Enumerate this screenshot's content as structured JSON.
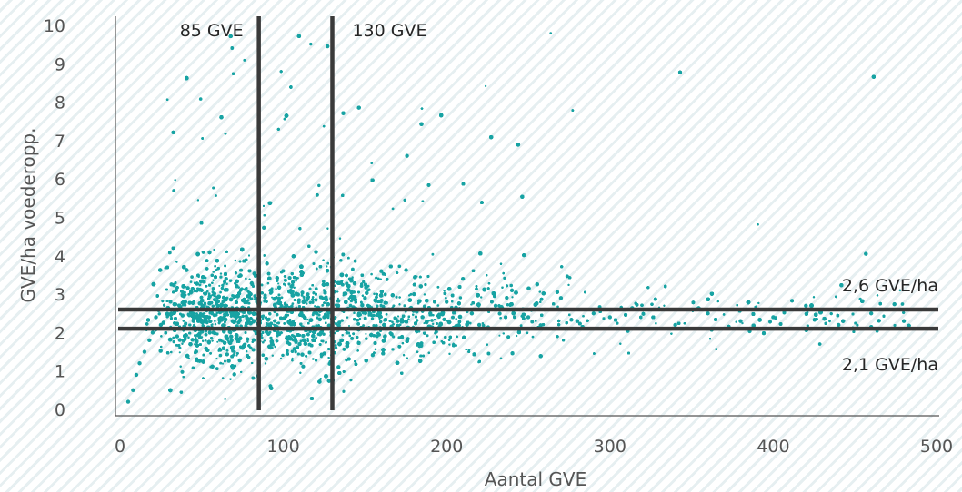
{
  "chart_data": {
    "type": "scatter",
    "title": "",
    "xlabel": "Aantal GVE",
    "ylabel": "GVE/ha voederopp.",
    "xlim": [
      0,
      500
    ],
    "ylim": [
      0,
      10
    ],
    "x_ticks": [
      "0",
      "100",
      "200",
      "300",
      "400",
      "500"
    ],
    "y_ticks": [
      "0",
      "1",
      "2",
      "3",
      "4",
      "5",
      "6",
      "7",
      "8",
      "9",
      "10"
    ],
    "grid": false,
    "point_color": "#17a3a3",
    "line_color": "#3a3a3a",
    "series": [
      {
        "points_note": "dense cloud of farms; main mass between 20–250 GVE and 1–4 GVE/ha, thinning out towards 500 GVE around 2–3 GVE/ha",
        "points": [
          [
            5,
            0.2
          ],
          [
            8,
            0.5
          ],
          [
            10,
            0.9
          ],
          [
            12,
            1.2
          ],
          [
            15,
            1.5
          ],
          [
            18,
            1.8
          ],
          [
            20,
            2.0
          ],
          [
            22,
            2.4
          ],
          [
            25,
            2.2
          ],
          [
            30,
            2.6
          ],
          [
            35,
            1.9
          ],
          [
            40,
            2.8
          ],
          [
            45,
            2.3
          ],
          [
            50,
            3.1
          ],
          [
            55,
            2.0
          ],
          [
            60,
            2.7
          ],
          [
            65,
            3.4
          ],
          [
            70,
            2.5
          ],
          [
            75,
            1.6
          ],
          [
            80,
            3.0
          ],
          [
            85,
            2.2
          ],
          [
            90,
            3.8
          ],
          [
            95,
            2.6
          ],
          [
            100,
            2.1
          ],
          [
            105,
            3.2
          ],
          [
            110,
            1.7
          ],
          [
            115,
            2.9
          ],
          [
            120,
            4.1
          ],
          [
            125,
            2.4
          ],
          [
            130,
            3.3
          ],
          [
            140,
            2.6
          ],
          [
            150,
            2.9
          ],
          [
            160,
            3.6
          ],
          [
            170,
            2.3
          ],
          [
            180,
            3.0
          ],
          [
            190,
            2.5
          ],
          [
            200,
            2.8
          ],
          [
            210,
            3.4
          ],
          [
            220,
            2.2
          ],
          [
            230,
            2.7
          ],
          [
            240,
            3.1
          ],
          [
            250,
            2.4
          ],
          [
            260,
            2.6
          ],
          [
            270,
            2.9
          ],
          [
            280,
            2.3
          ],
          [
            290,
            2.5
          ],
          [
            300,
            2.4
          ],
          [
            320,
            2.6
          ],
          [
            340,
            2.2
          ],
          [
            360,
            2.5
          ],
          [
            380,
            2.3
          ],
          [
            400,
            2.4
          ],
          [
            420,
            2.7
          ],
          [
            440,
            2.2
          ],
          [
            460,
            2.5
          ],
          [
            480,
            2.3
          ]
        ]
      }
    ],
    "reference_lines": [
      {
        "orientation": "vertical",
        "value": 85,
        "label": "85 GVE"
      },
      {
        "orientation": "vertical",
        "value": 130,
        "label": "130 GVE"
      },
      {
        "orientation": "horizontal",
        "value": 2.6,
        "label": "2,6 GVE/ha"
      },
      {
        "orientation": "horizontal",
        "value": 2.1,
        "label": "2,1 GVE/ha"
      }
    ]
  }
}
